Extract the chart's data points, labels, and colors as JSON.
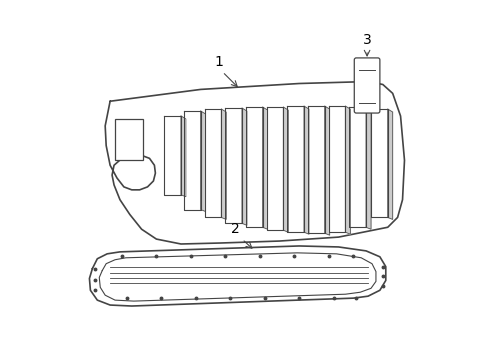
{
  "background_color": "#ffffff",
  "line_color": "#444444",
  "label_color": "#000000",
  "label_fontsize": 10,
  "fig_width": 4.89,
  "fig_height": 3.6,
  "dpi": 100
}
